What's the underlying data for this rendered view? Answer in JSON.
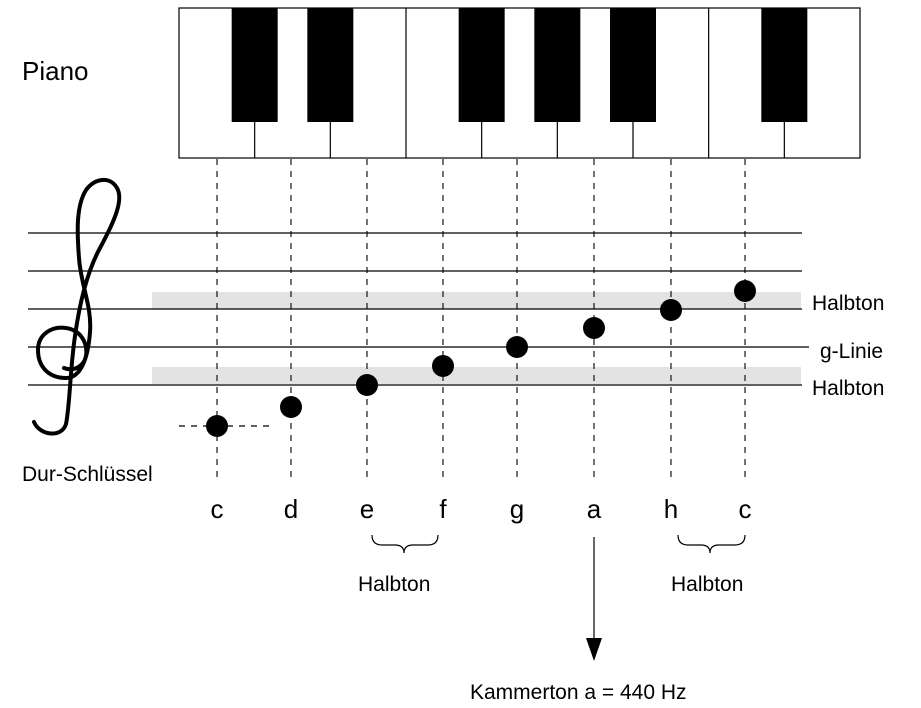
{
  "instrument_label": "Piano",
  "clef_label": "Dur-Schlüssel",
  "notes": [
    "c",
    "d",
    "e",
    "f",
    "g",
    "a",
    "h",
    "c"
  ],
  "staff_labels": {
    "upper_semitone": "Halbton",
    "g_line": "g-Linie",
    "lower_semitone": "Halbton"
  },
  "semitone_braces": [
    {
      "from": "e",
      "to": "f",
      "label": "Halbton"
    },
    {
      "from": "h",
      "to": "c",
      "label": "Halbton"
    }
  ],
  "reference_pitch": "Kammerton a = 440 Hz",
  "colors": {
    "ink": "#000000",
    "highlight": "#e3e3e3",
    "paper": "#ffffff"
  }
}
